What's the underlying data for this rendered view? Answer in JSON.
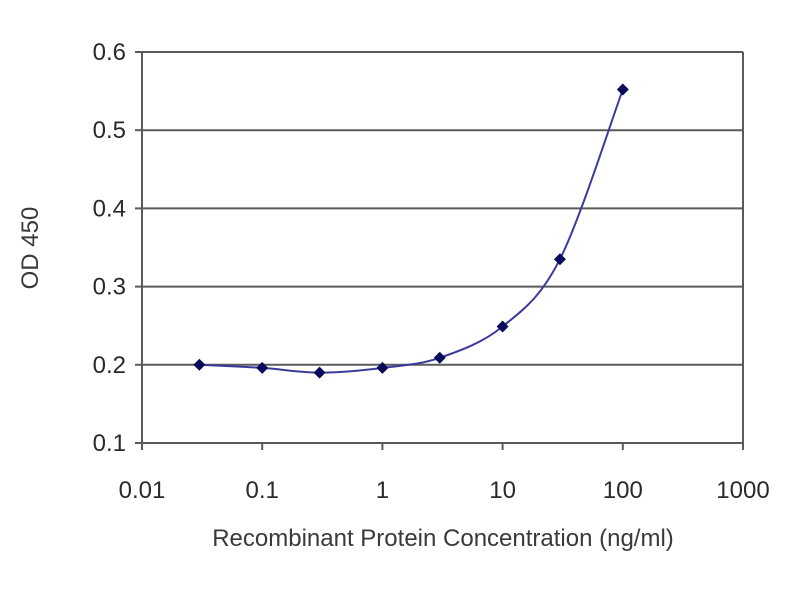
{
  "chart_data": {
    "type": "scatter",
    "title": "",
    "xlabel": "Recombinant Protein Concentration (ng/ml)",
    "ylabel": "OD 450",
    "xscale": "log",
    "xlim": [
      0.01,
      1000
    ],
    "ylim": [
      0.1,
      0.6
    ],
    "x_tick_values": [
      0.01,
      0.1,
      1,
      10,
      100,
      1000
    ],
    "x_ticks": [
      "0.01",
      "0.1",
      "1",
      "10",
      "100",
      "1000"
    ],
    "y_tick_values": [
      0.1,
      0.2,
      0.3,
      0.4,
      0.5,
      0.6
    ],
    "y_ticks": [
      "0.1",
      "0.2",
      "0.3",
      "0.4",
      "0.5",
      "0.6"
    ],
    "grid": "horizontal",
    "legend": "none",
    "series": [
      {
        "x": [
          0.03,
          0.1,
          0.3,
          1,
          3,
          10,
          30,
          100
        ],
        "y": [
          0.2,
          0.196,
          0.19,
          0.196,
          0.209,
          0.249,
          0.335,
          0.552
        ],
        "marker": "diamond",
        "fit_line": true
      }
    ],
    "colors": {
      "marker": "#0a0a5a",
      "line": "#3b3b9c",
      "grid": "#5a5a5a",
      "axis": "#5a5a5a"
    }
  }
}
